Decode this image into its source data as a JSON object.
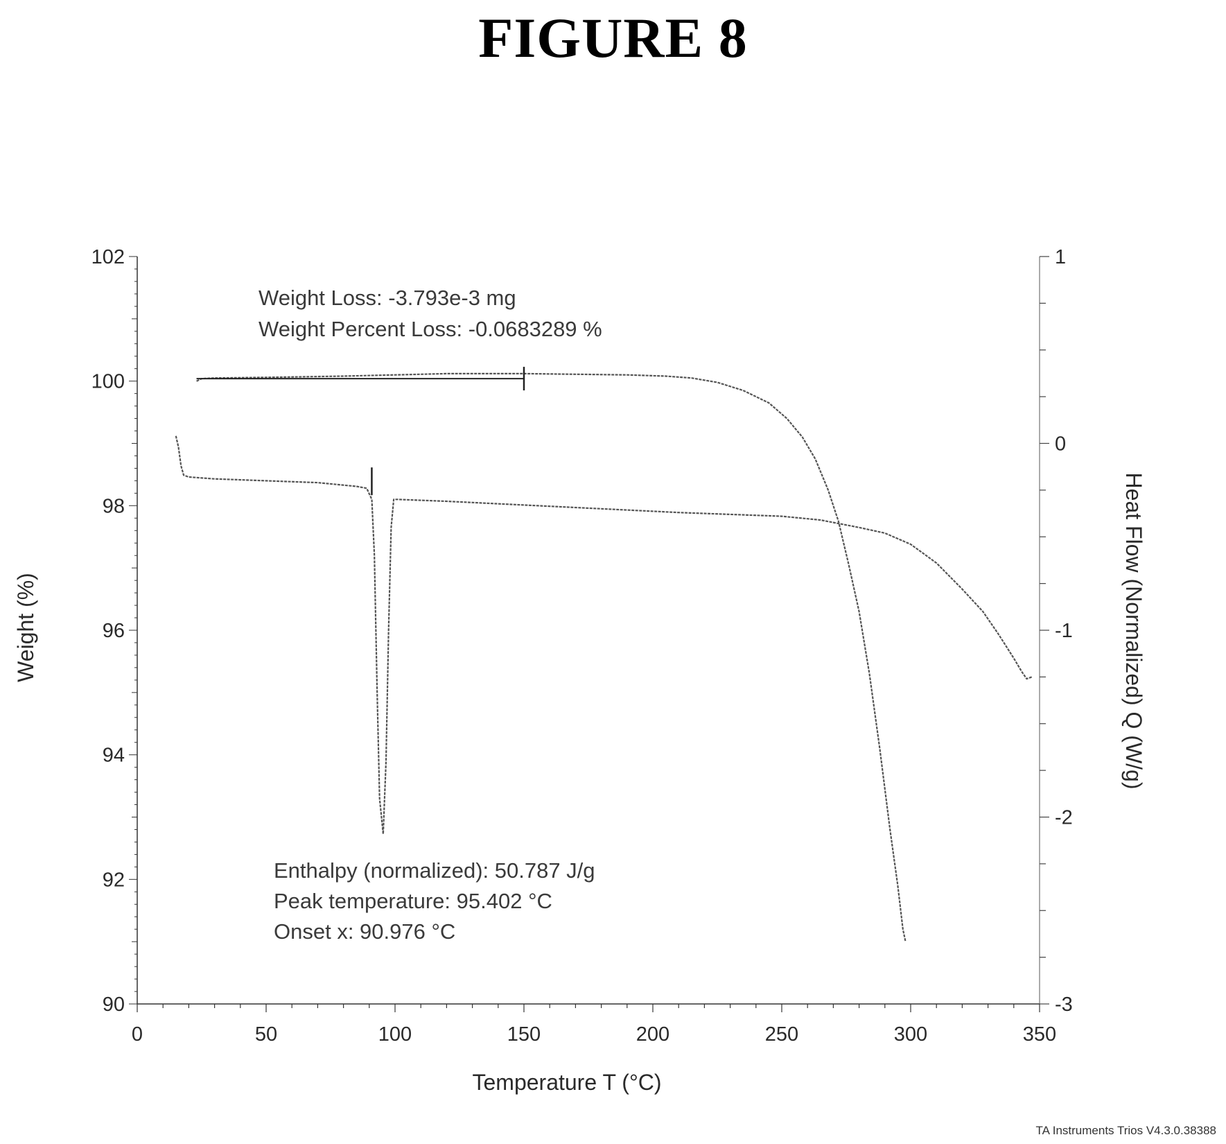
{
  "figure": {
    "title": "FIGURE 8"
  },
  "chart_data": {
    "type": "line",
    "x_axis": {
      "label": "Temperature  T  (°C)",
      "range": [
        0,
        350
      ],
      "ticks": [
        0,
        50,
        100,
        150,
        200,
        250,
        300,
        350
      ],
      "tick_labels": [
        "0",
        "50",
        "100",
        "150",
        "200",
        "250",
        "300",
        "350"
      ]
    },
    "y_axis_left": {
      "label": "Weight  (%)",
      "range": [
        90,
        102
      ],
      "ticks": [
        90,
        92,
        94,
        96,
        98,
        100,
        102
      ],
      "tick_labels": [
        "90",
        "92",
        "94",
        "96",
        "98",
        "100",
        "102"
      ]
    },
    "y_axis_right": {
      "label": "Heat Flow (Normalized)  Q  (W/g)",
      "range": [
        -3,
        1
      ],
      "ticks": [
        -3,
        -2,
        -1,
        0,
        1
      ],
      "tick_labels": [
        "-3",
        "-2",
        "-1",
        "0",
        "1"
      ]
    },
    "series": [
      {
        "axis": "left",
        "points": [
          [
            23,
            100.0
          ],
          [
            25,
            100.04
          ],
          [
            30,
            100.05
          ],
          [
            50,
            100.06
          ],
          [
            80,
            100.08
          ],
          [
            100,
            100.1
          ],
          [
            120,
            100.12
          ],
          [
            150,
            100.12
          ],
          [
            170,
            100.11
          ],
          [
            190,
            100.1
          ],
          [
            205,
            100.08
          ],
          [
            215,
            100.05
          ],
          [
            225,
            99.98
          ],
          [
            235,
            99.85
          ],
          [
            245,
            99.65
          ],
          [
            252,
            99.4
          ],
          [
            258,
            99.1
          ],
          [
            263,
            98.75
          ],
          [
            268,
            98.25
          ],
          [
            272,
            97.75
          ],
          [
            276,
            97.05
          ],
          [
            280,
            96.3
          ],
          [
            284,
            95.3
          ],
          [
            288,
            94.1
          ],
          [
            292,
            92.8
          ],
          [
            295,
            91.9
          ],
          [
            297,
            91.2
          ],
          [
            298,
            91.0
          ]
        ]
      },
      {
        "axis": "right",
        "points": [
          [
            15,
            0.04
          ],
          [
            16,
            -0.02
          ],
          [
            17,
            -0.12
          ],
          [
            18,
            -0.17
          ],
          [
            20,
            -0.18
          ],
          [
            30,
            -0.19
          ],
          [
            50,
            -0.2
          ],
          [
            70,
            -0.21
          ],
          [
            85,
            -0.23
          ],
          [
            89,
            -0.24
          ],
          [
            91,
            -0.3
          ],
          [
            92,
            -0.6
          ],
          [
            93,
            -1.3
          ],
          [
            94,
            -1.9
          ],
          [
            95.4,
            -2.09
          ],
          [
            96.5,
            -1.7
          ],
          [
            97.5,
            -1.0
          ],
          [
            98.5,
            -0.45
          ],
          [
            99.5,
            -0.3
          ],
          [
            101,
            -0.3
          ],
          [
            120,
            -0.31
          ],
          [
            150,
            -0.33
          ],
          [
            180,
            -0.35
          ],
          [
            210,
            -0.37
          ],
          [
            230,
            -0.38
          ],
          [
            250,
            -0.39
          ],
          [
            265,
            -0.41
          ],
          [
            280,
            -0.45
          ],
          [
            290,
            -0.48
          ],
          [
            300,
            -0.54
          ],
          [
            310,
            -0.64
          ],
          [
            320,
            -0.78
          ],
          [
            328,
            -0.9
          ],
          [
            334,
            -1.02
          ],
          [
            340,
            -1.15
          ],
          [
            343,
            -1.22
          ],
          [
            345,
            -1.26
          ],
          [
            347,
            -1.25
          ]
        ]
      }
    ],
    "annotations": {
      "tga_text": [
        "Weight Loss: -3.793e-3 mg",
        "Weight Percent Loss: -0.0683289 %"
      ],
      "tga_range_x": [
        23,
        150
      ],
      "dsc_text": [
        "Enthalpy (normalized): 50.787 J/g",
        "Peak temperature: 95.402 °C",
        "Onset x: 90.976 °C"
      ],
      "dsc_onset_x": 90.976
    },
    "footer": "TA Instruments Trios V4.3.0.38388"
  }
}
